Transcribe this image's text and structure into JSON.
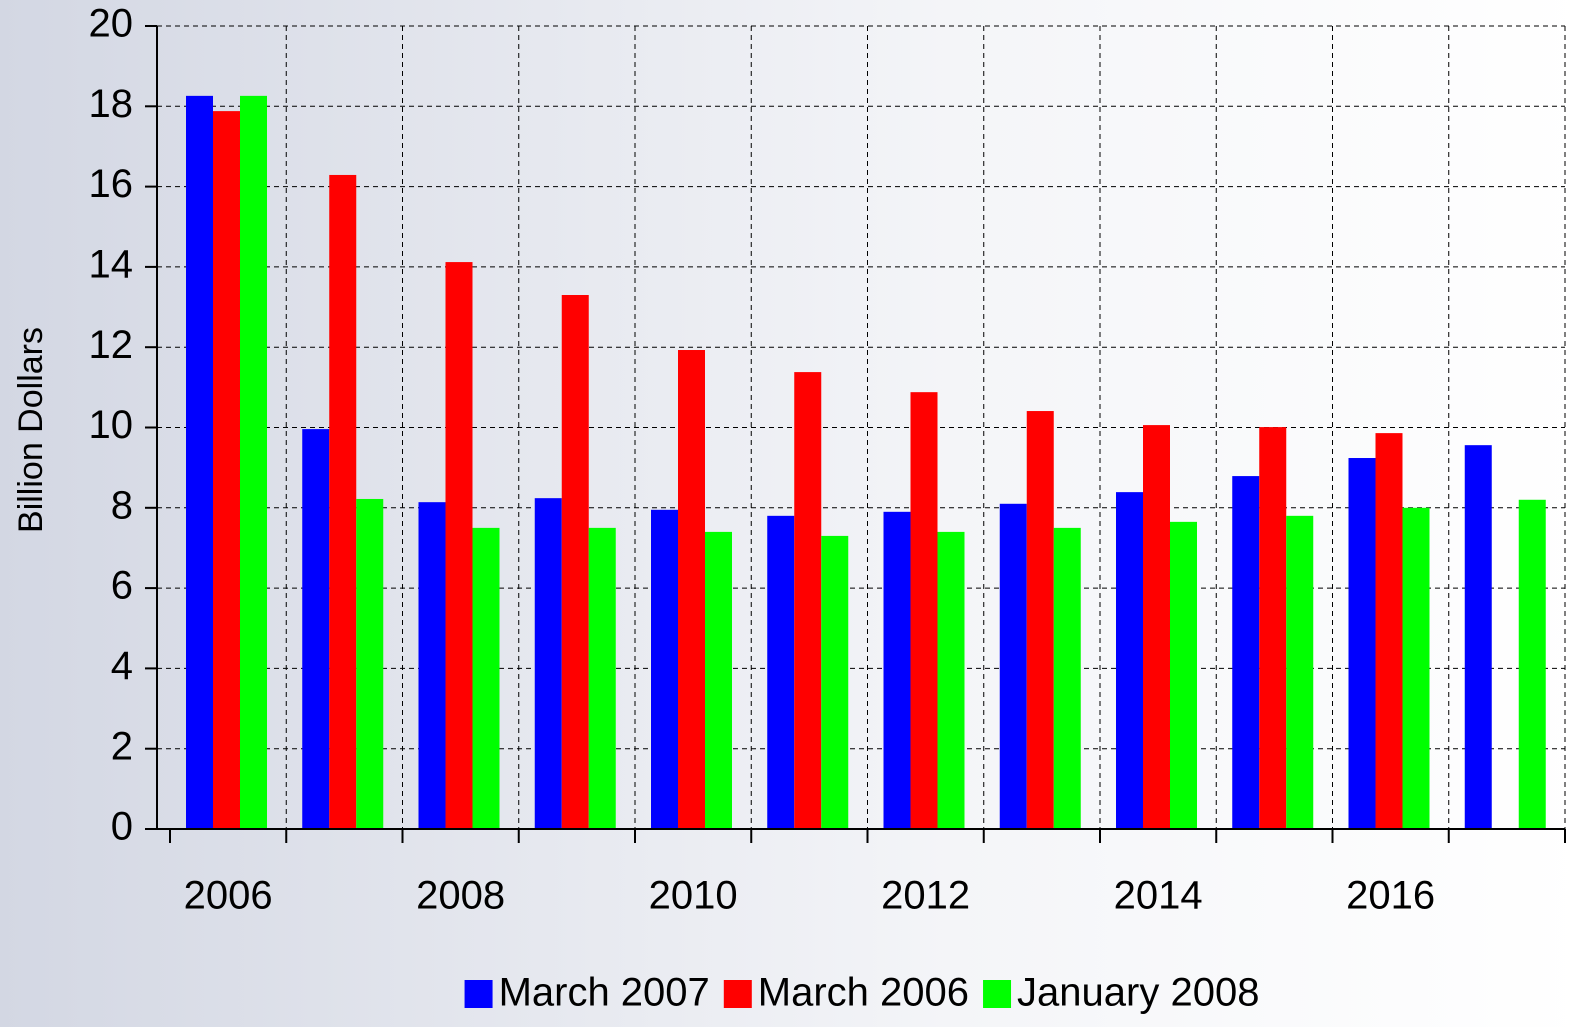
{
  "chart_data": {
    "type": "bar",
    "ylabel": "Billion Dollars",
    "categories": [
      "2006",
      null,
      "2008",
      null,
      "2010",
      null,
      "2012",
      null,
      "2014",
      null,
      "2016",
      null
    ],
    "series": [
      {
        "name": "March 2007",
        "color": "#0000ff",
        "values": [
          18.26,
          9.96,
          8.14,
          8.24,
          7.95,
          7.8,
          7.9,
          8.1,
          8.39,
          8.79,
          9.24,
          9.56
        ]
      },
      {
        "name": "March 2006",
        "color": "#ff0000",
        "values": [
          17.88,
          16.29,
          14.12,
          13.3,
          11.93,
          11.38,
          10.88,
          10.41,
          10.06,
          10.01,
          9.86,
          null
        ]
      },
      {
        "name": "January 2008",
        "color": "#00ff00",
        "values": [
          18.26,
          8.22,
          7.5,
          7.5,
          7.4,
          7.3,
          7.4,
          7.5,
          7.65,
          7.8,
          8.0,
          8.2
        ]
      }
    ],
    "ylim": [
      0,
      20
    ],
    "yticks": [
      0,
      2,
      4,
      6,
      8,
      10,
      12,
      14,
      16,
      18,
      20
    ],
    "grid": true,
    "legend": "bottom"
  }
}
